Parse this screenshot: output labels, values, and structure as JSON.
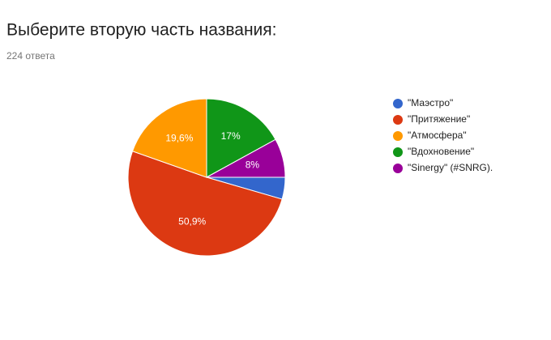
{
  "chart_data": {
    "type": "pie",
    "title": "Выберите вторую часть названия:",
    "subtitle": "224 ответа",
    "categories": [
      "\"Маэстро\"",
      "\"Притяжение\"",
      "\"Атмосфера\"",
      "\"Вдохновение\"",
      "\"Sinergy\" (#SNRG)."
    ],
    "values": [
      4.5,
      50.9,
      19.6,
      17,
      8
    ],
    "value_labels": [
      null,
      "50,9%",
      "19,6%",
      "17%",
      "8%"
    ],
    "colors": [
      "#3366cc",
      "#dc3912",
      "#ff9900",
      "#109618",
      "#990099"
    ]
  }
}
